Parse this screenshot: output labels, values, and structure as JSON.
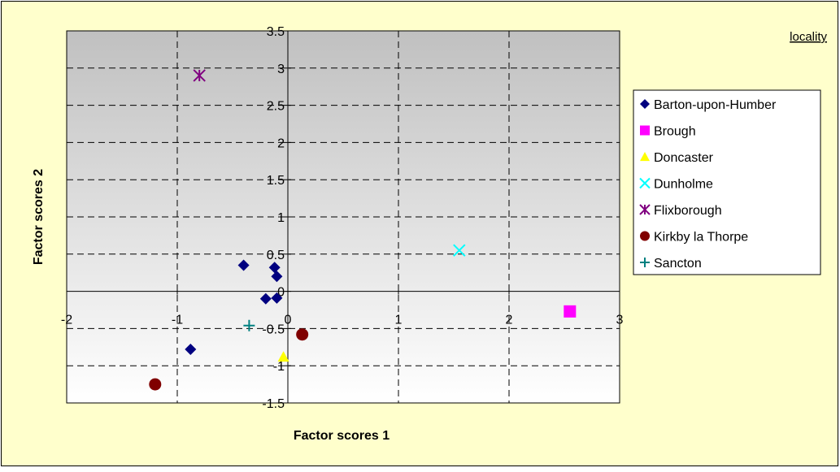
{
  "chart_data": {
    "type": "scatter",
    "title": "",
    "xlabel": "Factor scores 1",
    "ylabel": "Factor scores 2",
    "xlim": [
      -2,
      3
    ],
    "ylim": [
      -1.5,
      3.5
    ],
    "x_ticks": [
      -2,
      -1,
      0,
      1,
      2,
      3
    ],
    "y_ticks": [
      -1.5,
      -1,
      -0.5,
      0,
      0.5,
      1,
      1.5,
      2,
      2.5,
      3,
      3.5
    ],
    "x_tick_labels": [
      "-2",
      "-1",
      "0",
      "1",
      "2",
      "3"
    ],
    "y_tick_labels": [
      "-1.5",
      "-1",
      "-0.5",
      "0",
      "0.5",
      "1",
      "1.5",
      "2",
      "2.5",
      "3",
      "3.5"
    ],
    "grid": true,
    "legend_title": "locality",
    "legend_position": "right",
    "series": [
      {
        "name": "Barton-upon-Humber",
        "color": "#000080",
        "marker": "diamond",
        "points": [
          [
            -0.4,
            0.35
          ],
          [
            -0.12,
            0.32
          ],
          [
            -0.1,
            0.2
          ],
          [
            -0.2,
            -0.1
          ],
          [
            -0.1,
            -0.09
          ],
          [
            -0.88,
            -0.78
          ]
        ]
      },
      {
        "name": "Brough",
        "color": "#FF00FF",
        "marker": "square",
        "points": [
          [
            2.55,
            -0.27
          ]
        ]
      },
      {
        "name": "Doncaster",
        "color": "#FFFF00",
        "marker": "triangle",
        "points": [
          [
            -0.04,
            -0.88
          ]
        ]
      },
      {
        "name": "Dunholme",
        "color": "#00FFFF",
        "marker": "x",
        "points": [
          [
            1.55,
            0.55
          ]
        ]
      },
      {
        "name": "Flixborough",
        "color": "#800080",
        "marker": "star",
        "points": [
          [
            -0.8,
            2.9
          ]
        ]
      },
      {
        "name": "Kirkby la Thorpe",
        "color": "#800000",
        "marker": "circle",
        "points": [
          [
            -1.2,
            -1.25
          ],
          [
            0.13,
            -0.58
          ]
        ]
      },
      {
        "name": "Sancton",
        "color": "#008080",
        "marker": "plus",
        "points": [
          [
            -0.35,
            -0.46
          ]
        ]
      }
    ]
  },
  "colors": {
    "page_background": "#FFFFCC",
    "plot_gradient_top": "#C0C0C0",
    "plot_gradient_bottom": "#FFFFFF"
  }
}
